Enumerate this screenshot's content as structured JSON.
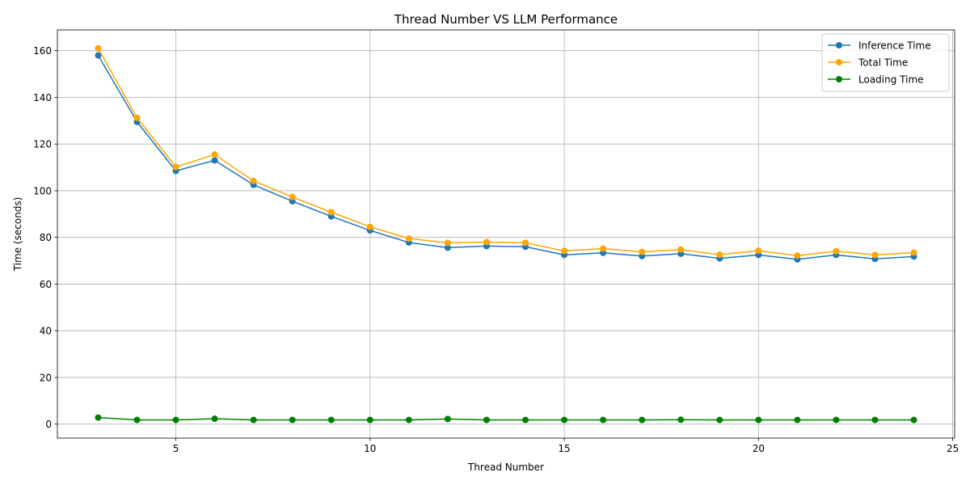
{
  "chart_data": {
    "type": "line",
    "title": "Thread Number VS LLM Performance",
    "xlabel": "Thread Number",
    "ylabel": "Time (seconds)",
    "xlim": [
      1.95,
      25.05
    ],
    "ylim": [
      -6.0,
      168.9
    ],
    "xticks": [
      5,
      10,
      15,
      20,
      25
    ],
    "yticks": [
      0,
      20,
      40,
      60,
      80,
      100,
      120,
      140,
      160
    ],
    "grid": true,
    "legend_position": "top-right",
    "x": [
      3,
      4,
      5,
      6,
      7,
      8,
      9,
      10,
      11,
      12,
      13,
      14,
      15,
      16,
      17,
      18,
      19,
      20,
      21,
      22,
      23,
      24
    ],
    "series": [
      {
        "name": "Inference Time",
        "color": "#1f77b4",
        "values": [
          158.0,
          129.5,
          108.5,
          113.0,
          102.5,
          95.5,
          89.0,
          83.0,
          77.8,
          75.6,
          76.3,
          76.0,
          72.5,
          73.4,
          72.0,
          73.0,
          71.0,
          72.5,
          70.6,
          72.5,
          70.8,
          71.8
        ]
      },
      {
        "name": "Total Time",
        "color": "#ffa500",
        "values": [
          161.0,
          131.2,
          110.2,
          115.5,
          104.2,
          97.3,
          90.8,
          84.5,
          79.5,
          77.7,
          78.0,
          77.7,
          74.2,
          75.2,
          73.8,
          74.8,
          72.6,
          74.3,
          72.2,
          74.1,
          72.5,
          73.5
        ]
      },
      {
        "name": "Loading Time",
        "color": "#008000",
        "values": [
          2.8,
          1.8,
          1.8,
          2.3,
          1.8,
          1.8,
          1.8,
          1.8,
          1.8,
          2.2,
          1.8,
          1.8,
          1.8,
          1.8,
          1.8,
          1.9,
          1.8,
          1.8,
          1.8,
          1.8,
          1.8,
          1.8
        ]
      }
    ]
  }
}
